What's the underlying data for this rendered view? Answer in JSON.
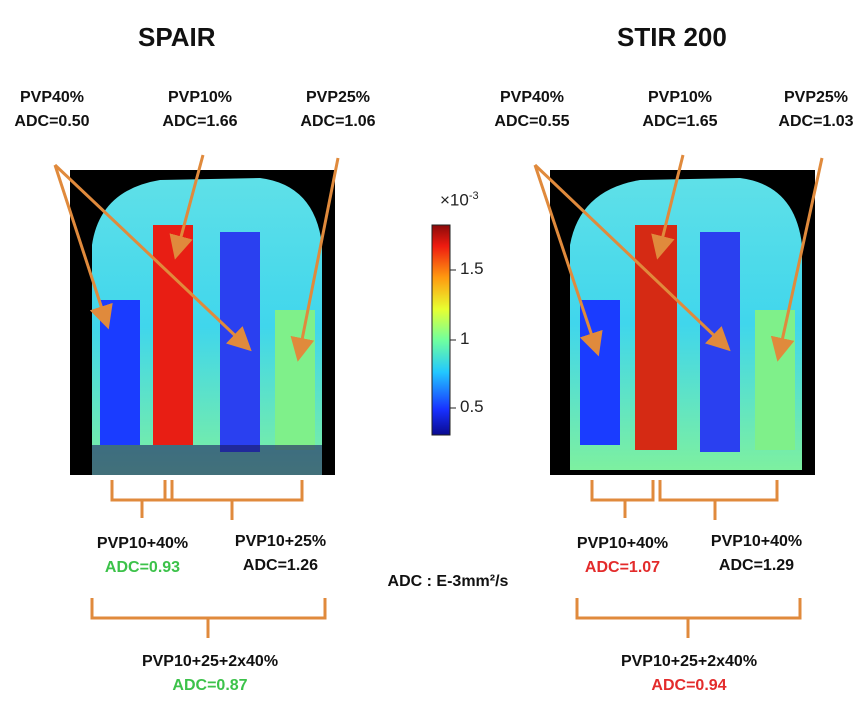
{
  "colors": {
    "arrow": "#e08a3c",
    "good": "#3cc24a",
    "bad": "#e32b2b"
  },
  "left": {
    "title": "SPAIR",
    "tubes": [
      {
        "name": "PVP40%",
        "adc": "ADC=0.50"
      },
      {
        "name": "PVP10%",
        "adc": "ADC=1.66"
      },
      {
        "name": "PVP25%",
        "adc": "ADC=1.06"
      }
    ],
    "mix1": {
      "name": "PVP10+40%",
      "adc": "ADC=0.93"
    },
    "mix2": {
      "name": "PVP10+25%",
      "adc": "ADC=1.26"
    },
    "mix3": {
      "name": "PVP10+25+2x40%",
      "adc": "ADC=0.87"
    }
  },
  "right": {
    "title": "STIR 200",
    "tubes": [
      {
        "name": "PVP40%",
        "adc": "ADC=0.55"
      },
      {
        "name": "PVP10%",
        "adc": "ADC=1.65"
      },
      {
        "name": "PVP25%",
        "adc": "ADC=1.03"
      }
    ],
    "mix1": {
      "name": "PVP10+40%",
      "adc": "ADC=1.07"
    },
    "mix2": {
      "name": "PVP10+40%",
      "adc": "ADC=1.29"
    },
    "mix3": {
      "name": "PVP10+25+2x40%",
      "adc": "ADC=0.94"
    }
  },
  "colorbar": {
    "exponent": "×10",
    "exponent_power": "-3",
    "ticks": [
      "1.5",
      "1",
      "0.5"
    ]
  },
  "unit_label": "ADC : E-3mm²/s"
}
